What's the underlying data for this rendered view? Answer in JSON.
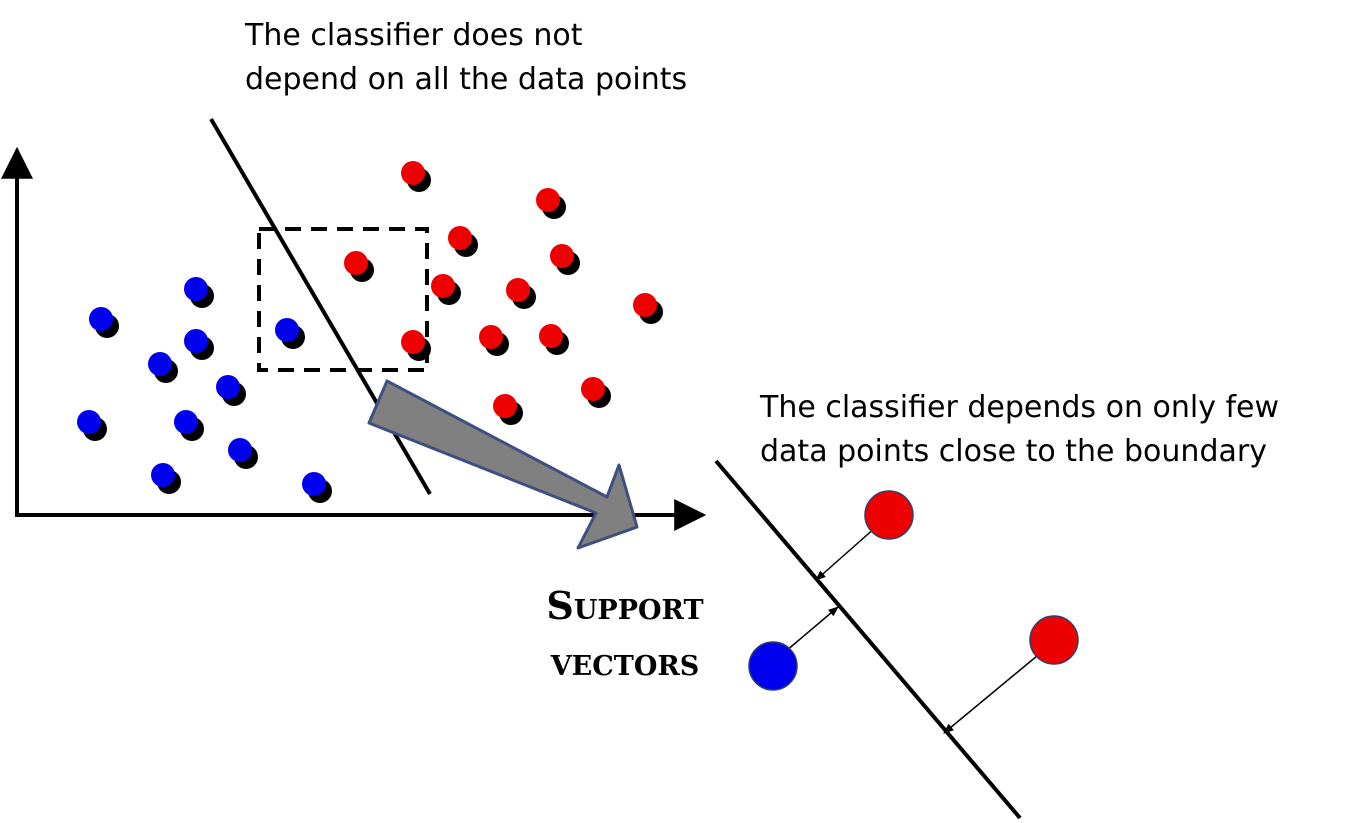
{
  "captions": {
    "top": {
      "line1": "The classifier does not",
      "line2": "depend on all the data points"
    },
    "right": {
      "line1": "The classifier depends on only few",
      "line2": "data points close to the boundary"
    }
  },
  "support_vectors_label": {
    "line1": "Support",
    "line2": "vectors"
  },
  "colors": {
    "class_a": "#0000ee",
    "class_b": "#ee0000",
    "shadow": "#000000",
    "arrow_fill": "#808080",
    "arrow_stroke": "#3f4f7f",
    "line": "#000000"
  }
}
